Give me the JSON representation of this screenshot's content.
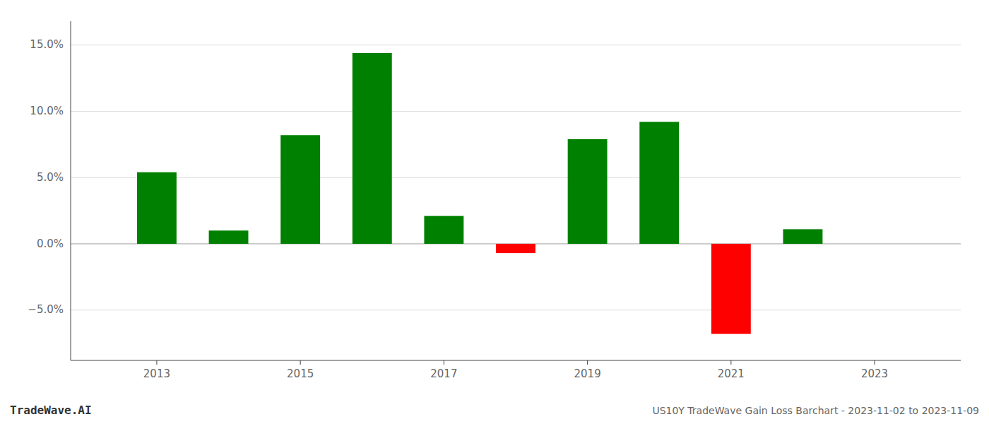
{
  "chart_data": {
    "type": "bar",
    "title": "US10Y TradeWave Gain Loss Barchart - 2023-11-02 to 2023-11-09",
    "annotations": [
      "TradeWave.AI"
    ],
    "x": [
      2013,
      2014,
      2015,
      2016,
      2017,
      2018,
      2019,
      2020,
      2021,
      2022
    ],
    "values": [
      0.054,
      0.01,
      0.082,
      0.144,
      0.021,
      -0.007,
      0.079,
      0.092,
      -0.068,
      0.011
    ],
    "colors": [
      "#008000",
      "#008000",
      "#008000",
      "#008000",
      "#008000",
      "#ff0000",
      "#008000",
      "#008000",
      "#ff0000",
      "#008000"
    ],
    "xlim": [
      2011.8,
      2024.2
    ],
    "xticks": [
      2013,
      2015,
      2017,
      2019,
      2021,
      2023
    ],
    "ylim": [
      -0.088,
      0.168
    ],
    "yticks": [
      {
        "value": -0.05,
        "label": "−5.0%"
      },
      {
        "value": 0.0,
        "label": "0.0%"
      },
      {
        "value": 0.05,
        "label": "5.0%"
      },
      {
        "value": 0.1,
        "label": "10.0%"
      },
      {
        "value": 0.15,
        "label": "15.0%"
      }
    ],
    "grid": true
  }
}
